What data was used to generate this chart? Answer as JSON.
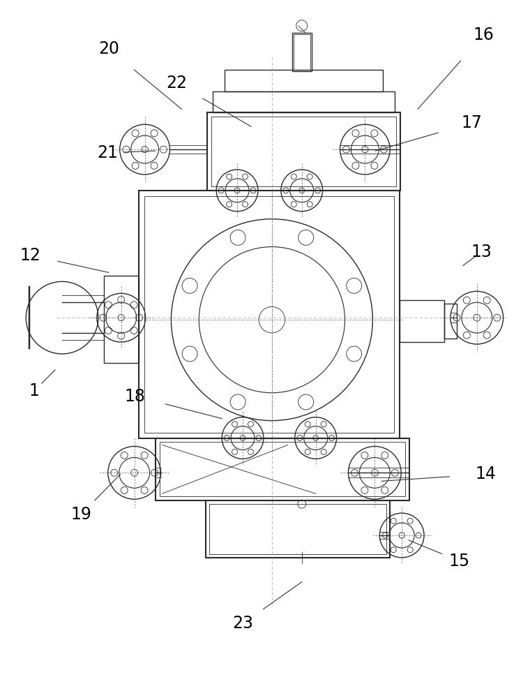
{
  "background_color": "#ffffff",
  "line_color": "#2a2a2a",
  "label_color": "#000000",
  "figure_width": 7.27,
  "figure_height": 10.0
}
